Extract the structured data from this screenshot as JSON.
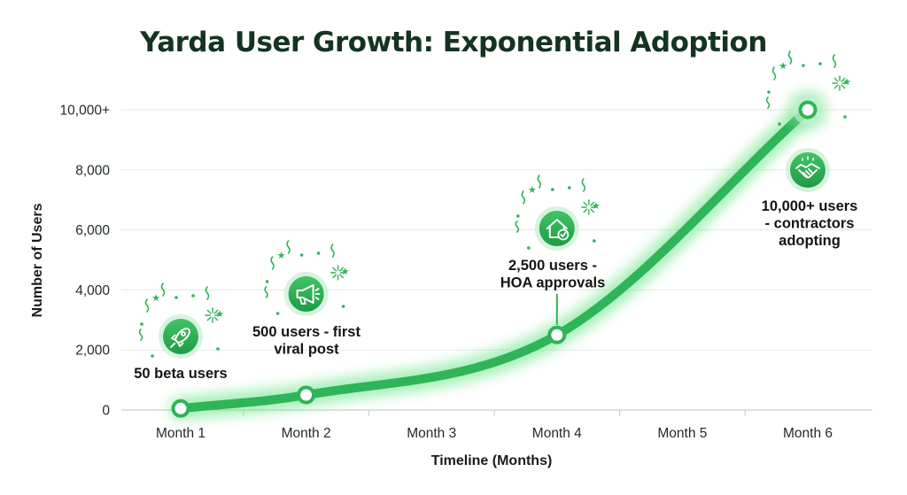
{
  "chart_data": {
    "type": "line",
    "title": "Yarda User Growth: Exponential Adoption",
    "xlabel": "Timeline (Months)",
    "ylabel": "Number of Users",
    "categories": [
      "Month 1",
      "Month 2",
      "Month 3",
      "Month 4",
      "Month 5",
      "Month 6"
    ],
    "ylim": [
      0,
      10000
    ],
    "y_ticks": [
      {
        "value": 0,
        "label": "0"
      },
      {
        "value": 2000,
        "label": "2,000"
      },
      {
        "value": 4000,
        "label": "4,000"
      },
      {
        "value": 6000,
        "label": "6,000"
      },
      {
        "value": 8000,
        "label": "8,000"
      },
      {
        "value": 10000,
        "label": "10,000+"
      }
    ],
    "series": [
      {
        "values": [
          50,
          500,
          null,
          2500,
          null,
          10000
        ]
      }
    ],
    "grid": true,
    "line_color": "#2fb457",
    "glow_color": "#5ce27c",
    "annotations": [
      {
        "month": 1,
        "value": 50,
        "lines": [
          "50 beta users"
        ],
        "icon": "rocket-icon"
      },
      {
        "month": 2,
        "value": 500,
        "lines": [
          "500 users - first",
          "viral post"
        ],
        "icon": "megaphone-icon"
      },
      {
        "month": 4,
        "value": 2500,
        "lines": [
          "2,500 users -",
          "HOA approvals"
        ],
        "icon": "house-check-icon"
      },
      {
        "month": 6,
        "value": 10000,
        "lines": [
          "10,000+ users",
          "- contractors",
          "adopting"
        ],
        "icon": "handshake-icon"
      }
    ]
  }
}
